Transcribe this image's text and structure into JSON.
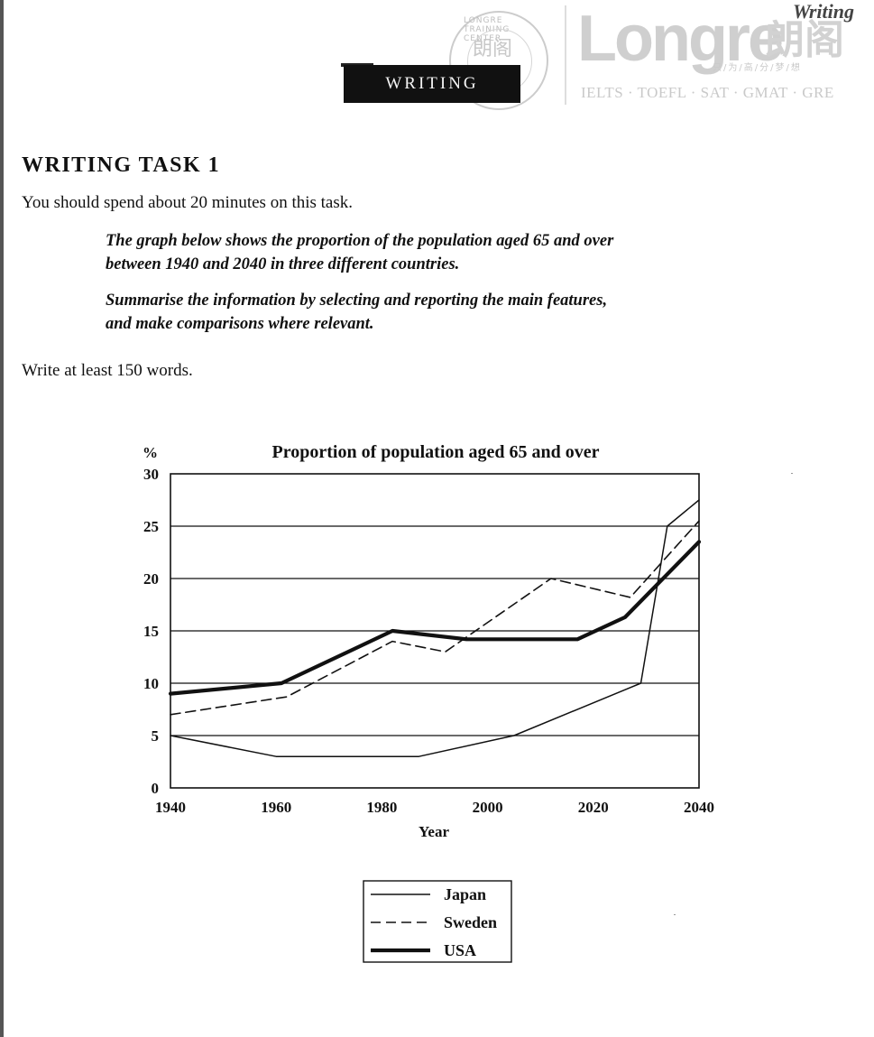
{
  "header": {
    "section_label": "Writing",
    "banner_label": "WRITING",
    "seal_char": "朗阁",
    "seal_text": "LONGRE TRAINING CENTER",
    "brand_name": "Longre",
    "brand_cn": "朗阁",
    "brand_slogan": "只/为/高/分/梦/想",
    "brand_tests": "IELTS · TOEFL · SAT · GMAT · GRE"
  },
  "task": {
    "title": "WRITING TASK 1",
    "time_instruction": "You should spend about 20 minutes on this task.",
    "prompt_line1": "The graph below shows the proportion of the population aged 65 and over",
    "prompt_line2": "between 1940 and 2040 in three different countries.",
    "prompt_line3": "Summarise the information by selecting and reporting the main features,",
    "prompt_line4": "and make comparisons where relevant.",
    "word_requirement": "Write at least 150 words."
  },
  "chart_data": {
    "type": "line",
    "title": "Proportion of population aged 65 and over",
    "ylabel": "%",
    "xlabel": "Year",
    "xlim": [
      1940,
      2040
    ],
    "ylim": [
      0,
      30
    ],
    "x_ticks": [
      1940,
      1960,
      1980,
      2000,
      2020,
      2040
    ],
    "y_ticks": [
      0,
      5,
      10,
      15,
      20,
      25,
      30
    ],
    "grid": "horizontal",
    "legend_position": "below",
    "series": [
      {
        "name": "Japan",
        "style": "thin",
        "color": "#111111",
        "points": [
          [
            1940,
            5
          ],
          [
            1960,
            3
          ],
          [
            1987,
            3
          ],
          [
            2005,
            5
          ],
          [
            2029,
            10
          ],
          [
            2034,
            25
          ],
          [
            2040,
            27.5
          ]
        ]
      },
      {
        "name": "Sweden",
        "style": "dashed",
        "color": "#111111",
        "points": [
          [
            1940,
            7
          ],
          [
            1962,
            8.7
          ],
          [
            1982,
            14
          ],
          [
            1992,
            13
          ],
          [
            2012,
            20
          ],
          [
            2027,
            18.2
          ],
          [
            2040,
            25.5
          ]
        ]
      },
      {
        "name": "USA",
        "style": "thick",
        "color": "#111111",
        "points": [
          [
            1940,
            9
          ],
          [
            1961,
            10
          ],
          [
            1982,
            15
          ],
          [
            1996,
            14.2
          ],
          [
            2017,
            14.2
          ],
          [
            2026,
            16.3
          ],
          [
            2040,
            23.5
          ]
        ]
      }
    ]
  }
}
